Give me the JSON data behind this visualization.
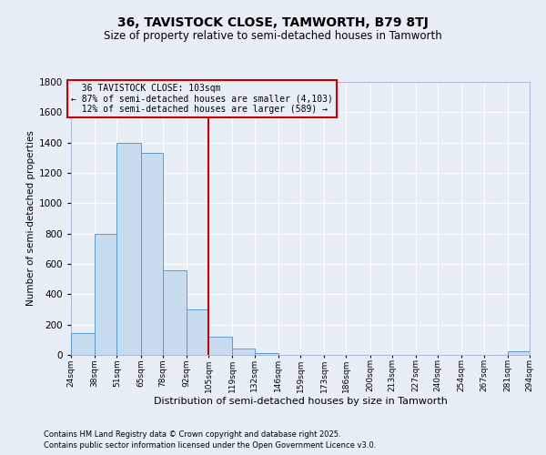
{
  "title": "36, TAVISTOCK CLOSE, TAMWORTH, B79 8TJ",
  "subtitle": "Size of property relative to semi-detached houses in Tamworth",
  "xlabel": "Distribution of semi-detached houses by size in Tamworth",
  "ylabel": "Number of semi-detached properties",
  "property_label": "36 TAVISTOCK CLOSE: 103sqm",
  "smaller_pct": 87,
  "smaller_count": "4,103",
  "larger_pct": 12,
  "larger_count": "589",
  "bar_color": "#c8dcf0",
  "bar_edge_color": "#5b9bd5",
  "vline_color": "#cc0000",
  "annotation_edge_color": "#cc0000",
  "background_color": "#e8eef5",
  "grid_color": "#ffffff",
  "footnote1": "Contains HM Land Registry data © Crown copyright and database right 2025.",
  "footnote2": "Contains public sector information licensed under the Open Government Licence v3.0.",
  "bin_edges": [
    24,
    38,
    51,
    65,
    78,
    92,
    105,
    119,
    132,
    146,
    159,
    173,
    186,
    200,
    213,
    227,
    240,
    254,
    267,
    281,
    294
  ],
  "bin_labels": [
    "24sqm",
    "38sqm",
    "51sqm",
    "65sqm",
    "78sqm",
    "92sqm",
    "105sqm",
    "119sqm",
    "132sqm",
    "146sqm",
    "159sqm",
    "173sqm",
    "186sqm",
    "200sqm",
    "213sqm",
    "227sqm",
    "240sqm",
    "254sqm",
    "267sqm",
    "281sqm",
    "294sqm"
  ],
  "counts": [
    145,
    800,
    1400,
    1330,
    560,
    300,
    120,
    40,
    10,
    3,
    0,
    0,
    0,
    0,
    0,
    0,
    0,
    0,
    0,
    25
  ],
  "vline_x": 105,
  "ylim": [
    0,
    1800
  ],
  "yticks": [
    0,
    200,
    400,
    600,
    800,
    1000,
    1200,
    1400,
    1600,
    1800
  ]
}
